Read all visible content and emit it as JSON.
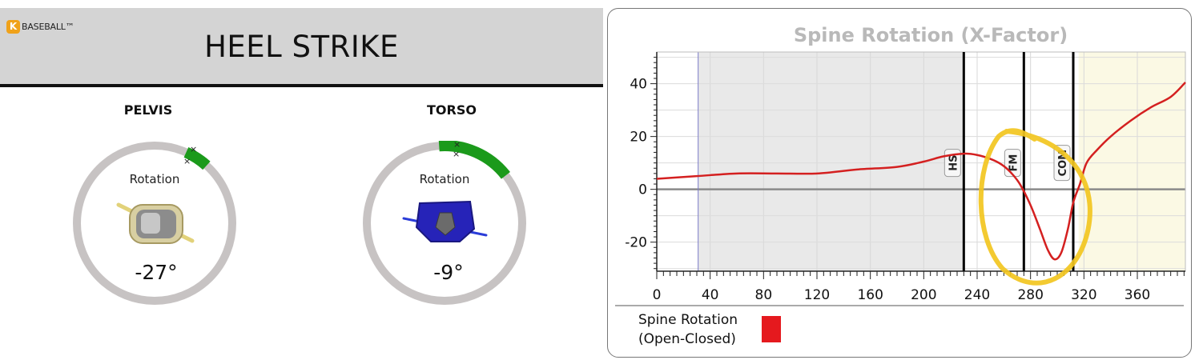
{
  "brand": {
    "logo_letter": "K",
    "logo_text": "BASEBALL™"
  },
  "page": {
    "title": "HEEL STRIKE"
  },
  "gauges": [
    {
      "name": "PELVIS",
      "metric": "Rotation",
      "value": "-27°",
      "segment_color": "#1b9a1b",
      "ring_color": "#c7c3c3"
    },
    {
      "name": "TORSO",
      "metric": "Rotation",
      "value": "-9°",
      "segment_color": "#1b9a1b",
      "ring_color": "#c7c3c3"
    }
  ],
  "chart_data": {
    "type": "line",
    "title": "Spine Rotation (X-Factor)",
    "xlabel": "",
    "ylabel": "",
    "xlim": [
      0,
      396
    ],
    "ylim": [
      -31,
      52
    ],
    "x_ticks": [
      0,
      40,
      80,
      120,
      160,
      200,
      240,
      280,
      320,
      360
    ],
    "x_tick_labels": [
      "0",
      "40",
      "80",
      "120",
      "160",
      "200",
      "240",
      "280",
      "320",
      "360"
    ],
    "y_ticks": [
      -20,
      0,
      20,
      40
    ],
    "y_tick_labels": [
      "-20",
      "0",
      "20",
      "40"
    ],
    "grid": true,
    "series": [
      {
        "name": "Spine Rotation (Open-Closed)",
        "color": "#d42020",
        "x": [
          0,
          30,
          60,
          90,
          120,
          150,
          180,
          200,
          215,
          230,
          240,
          250,
          258,
          265,
          272,
          280,
          287,
          293,
          298,
          303,
          308,
          312,
          317,
          322,
          330,
          340,
          355,
          370,
          385,
          396
        ],
        "y": [
          4,
          5,
          6,
          6,
          6,
          7.5,
          8.5,
          10.5,
          12.5,
          13.5,
          13,
          11.5,
          9.5,
          6.5,
          2,
          -6,
          -15,
          -23,
          -26.5,
          -24,
          -15,
          -5,
          2,
          10,
          15,
          20,
          26,
          31,
          35,
          40.5
        ]
      }
    ],
    "event_markers": [
      {
        "label": "HS",
        "x": 230
      },
      {
        "label": "FM",
        "x": 275
      },
      {
        "label": "COM",
        "x": 312
      }
    ],
    "reference_x": 31,
    "shaded_regions": [
      {
        "from": 31,
        "to": 230,
        "color": "#e9e9e9"
      },
      {
        "from": 316,
        "to": 396,
        "color": "#fbf9e4"
      }
    ],
    "annotation": {
      "shape": "hand-drawn-circle",
      "color": "#f2c61f"
    },
    "legend": {
      "position": "bottom-left",
      "entries": [
        {
          "label": "Spine Rotation\n(Open-Closed)",
          "color": "#e5191e"
        }
      ]
    }
  }
}
